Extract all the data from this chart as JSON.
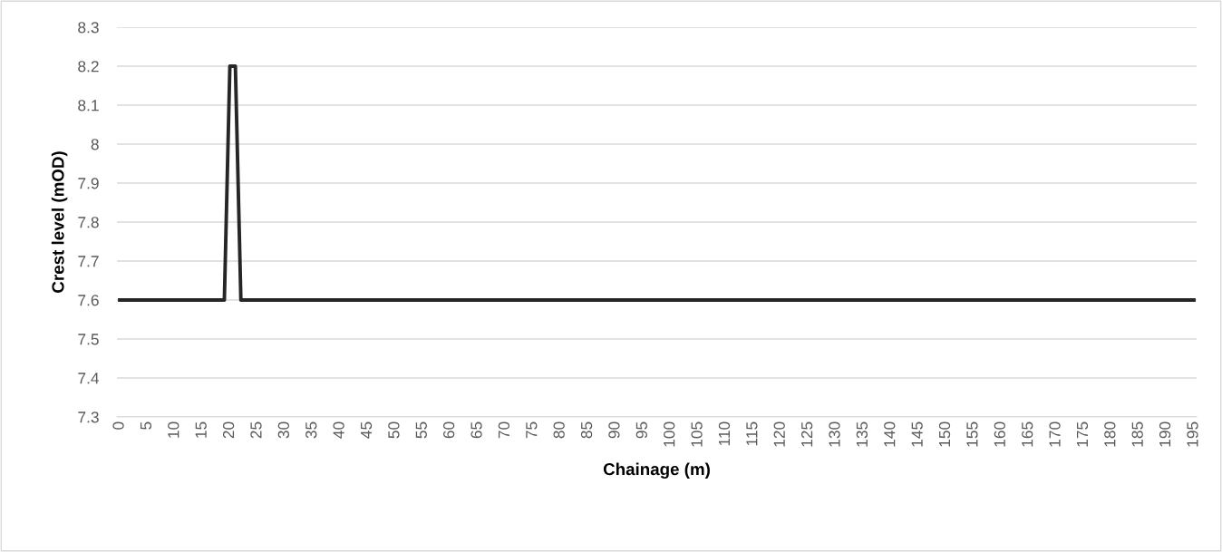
{
  "chart_data": {
    "type": "line",
    "xlabel": "Chainage (m)",
    "ylabel": "Crest level (mOD)",
    "series": [
      {
        "color": "#262626",
        "x": [
          0,
          19,
          20,
          21,
          22,
          195
        ],
        "values": [
          7.6,
          7.6,
          8.2,
          8.2,
          7.6,
          7.6
        ]
      }
    ],
    "xlim": [
      -0.5,
      195.5
    ],
    "xticks": [
      0,
      5,
      10,
      15,
      20,
      25,
      30,
      35,
      40,
      45,
      50,
      55,
      60,
      65,
      70,
      75,
      80,
      85,
      90,
      95,
      100,
      105,
      110,
      115,
      120,
      125,
      130,
      135,
      140,
      145,
      150,
      155,
      160,
      165,
      170,
      175,
      180,
      185,
      190,
      195
    ],
    "ylim": [
      7.3,
      8.3
    ],
    "yticks": [
      7.3,
      7.4,
      7.5,
      7.6,
      7.7,
      7.8,
      7.9,
      {
        "value": 8,
        "label": "8"
      },
      8.1,
      8.2,
      8.3
    ],
    "grid": "y",
    "marker": "none",
    "line_style": "solid",
    "legend": false
  }
}
